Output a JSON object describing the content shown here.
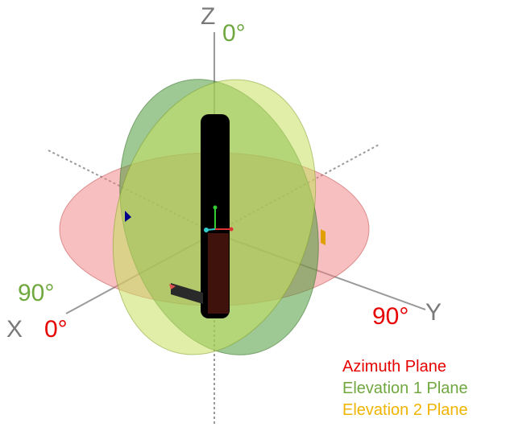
{
  "axes": {
    "x_label": "X",
    "y_label": "Y",
    "z_label": "Z"
  },
  "angles": {
    "z_top": "0°",
    "x_elevation": "90°",
    "x_azimuth": "0°",
    "y_azimuth": "90°"
  },
  "legend": [
    {
      "label": "Azimuth Plane",
      "color": "#e60000"
    },
    {
      "label": "Elevation 1 Plane",
      "color": "#70a73f"
    },
    {
      "label": "Elevation 2 Plane",
      "color": "#f0b400"
    }
  ],
  "colors": {
    "azimuth_fill": "#f08080",
    "elevation1_fill": "#4f9a3c",
    "elevation2_fill": "#c6e060",
    "axis": "#9a9a9a",
    "device": "#000000"
  }
}
